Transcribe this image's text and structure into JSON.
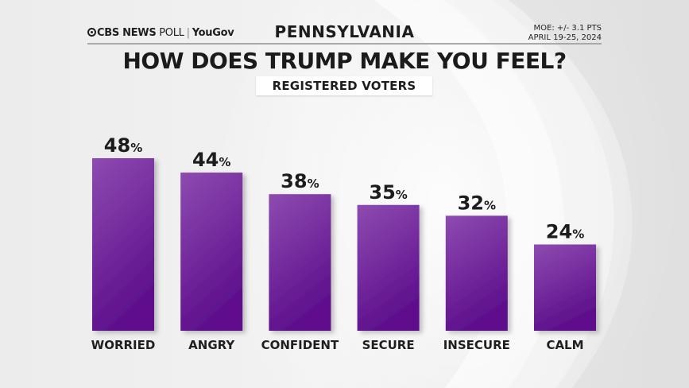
{
  "header": {
    "brand_left": "CBS NEWS",
    "brand_poll": "POLL",
    "brand_partner": "YouGov",
    "state": "PENNSYLVANIA",
    "moe": "MOE: +/- 3.1 PTS",
    "dates": "APRIL 19-25, 2024"
  },
  "colors": {
    "bar_top": "#8d4bb0",
    "bar_bottom": "#5e0f8c",
    "text": "#1c1c1c"
  },
  "chart_data": {
    "type": "bar",
    "title": "HOW DOES TRUMP MAKE YOU FEEL?",
    "subtitle": "REGISTERED VOTERS",
    "categories": [
      "WORRIED",
      "ANGRY",
      "CONFIDENT",
      "SECURE",
      "INSECURE",
      "CALM"
    ],
    "values": [
      48,
      44,
      38,
      35,
      32,
      24
    ],
    "value_suffix": "%",
    "xlabel": "",
    "ylabel": "",
    "ylim": [
      0,
      48
    ],
    "grid": false,
    "legend": "none"
  }
}
